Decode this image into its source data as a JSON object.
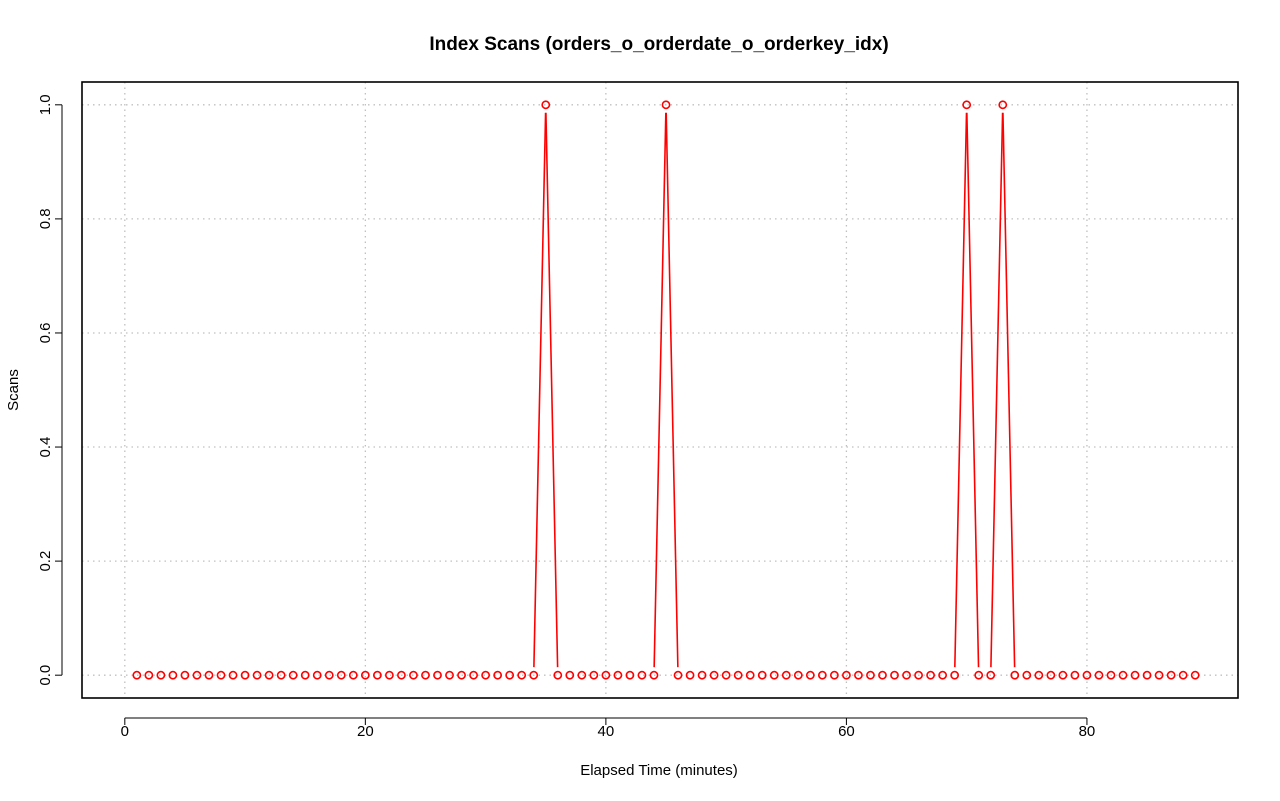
{
  "chart_data": {
    "type": "line",
    "title": "Index Scans (orders_o_orderdate_o_orderkey_idx)",
    "xlabel": "Elapsed Time (minutes)",
    "ylabel": "Scans",
    "xlim": [
      -3.56,
      92.56
    ],
    "ylim": [
      -0.04,
      1.04
    ],
    "x_ticks": [
      0,
      20,
      40,
      60,
      80
    ],
    "y_ticks": [
      0.0,
      0.2,
      0.4,
      0.6,
      0.8,
      1.0
    ],
    "x_tick_labels": [
      "0",
      "20",
      "40",
      "60",
      "80"
    ],
    "y_tick_labels": [
      "0.0",
      "0.2",
      "0.4",
      "0.6",
      "0.8",
      "1.0"
    ],
    "grid": true,
    "series": [
      {
        "color": "#ff0000",
        "marker": "open-circle",
        "x": [
          1,
          2,
          3,
          4,
          5,
          6,
          7,
          8,
          9,
          10,
          11,
          12,
          13,
          14,
          15,
          16,
          17,
          18,
          19,
          20,
          21,
          22,
          23,
          24,
          25,
          26,
          27,
          28,
          29,
          30,
          31,
          32,
          33,
          34,
          35,
          36,
          37,
          38,
          39,
          40,
          41,
          42,
          43,
          44,
          45,
          46,
          47,
          48,
          49,
          50,
          51,
          52,
          53,
          54,
          55,
          56,
          57,
          58,
          59,
          60,
          61,
          62,
          63,
          64,
          65,
          66,
          67,
          68,
          69,
          70,
          71,
          72,
          73,
          74,
          75,
          76,
          77,
          78,
          79,
          80,
          81,
          82,
          83,
          84,
          85,
          86,
          87,
          88,
          89
        ],
        "y": [
          0,
          0,
          0,
          0,
          0,
          0,
          0,
          0,
          0,
          0,
          0,
          0,
          0,
          0,
          0,
          0,
          0,
          0,
          0,
          0,
          0,
          0,
          0,
          0,
          0,
          0,
          0,
          0,
          0,
          0,
          0,
          0,
          0,
          0,
          1,
          0,
          0,
          0,
          0,
          0,
          0,
          0,
          0,
          0,
          1,
          0,
          0,
          0,
          0,
          0,
          0,
          0,
          0,
          0,
          0,
          0,
          0,
          0,
          0,
          0,
          0,
          0,
          0,
          0,
          0,
          0,
          0,
          0,
          0,
          1,
          0,
          0,
          1,
          0,
          0,
          0,
          0,
          0,
          0,
          0,
          0,
          0,
          0,
          0,
          0,
          0,
          0,
          0,
          0
        ]
      }
    ]
  }
}
